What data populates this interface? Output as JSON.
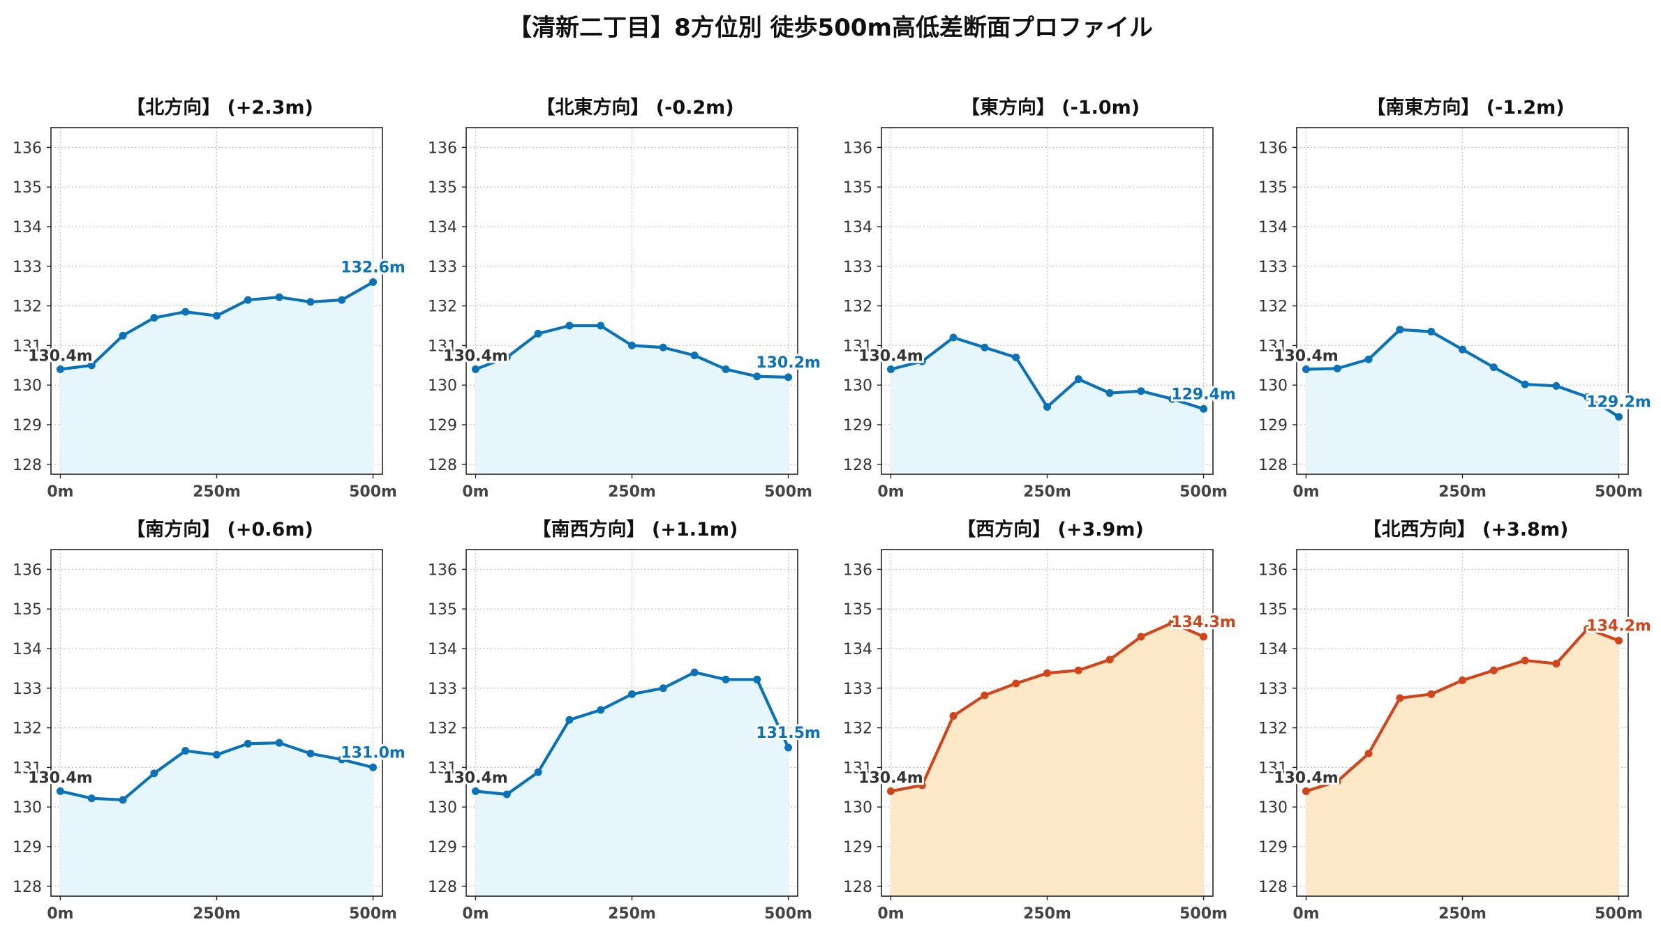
{
  "title": "【清新二丁目】8方位別 徒歩500m高低差断面プロファイル",
  "colors": {
    "blue": "#0a72b8",
    "blue_fill": "#e6f6fc",
    "orange": "#d2451a",
    "orange_fill": "#fde8c8",
    "start_label": "#333333"
  },
  "chart_data": [
    {
      "type": "line",
      "title": "【北方向】 (+2.3m)",
      "color": "blue",
      "x": [
        0,
        50,
        100,
        150,
        200,
        250,
        300,
        350,
        400,
        450,
        500
      ],
      "y": [
        130.4,
        130.5,
        131.25,
        131.7,
        131.85,
        131.75,
        132.15,
        132.22,
        132.1,
        132.15,
        132.6
      ],
      "start_label": "130.4m",
      "end_label": "132.6m",
      "xticks": [
        "0m",
        "250m",
        "500m"
      ],
      "xtick_values": [
        0,
        250,
        500
      ],
      "yticks": [
        "128",
        "129",
        "130",
        "131",
        "132",
        "133",
        "134",
        "135",
        "136"
      ],
      "xlim": [
        -15,
        515
      ],
      "ylim": [
        127.75,
        136.5
      ],
      "grid": true
    },
    {
      "type": "line",
      "title": "【北東方向】 (-0.2m)",
      "color": "blue",
      "x": [
        0,
        50,
        100,
        150,
        200,
        250,
        300,
        350,
        400,
        450,
        500
      ],
      "y": [
        130.4,
        130.7,
        131.3,
        131.5,
        131.5,
        131.0,
        130.95,
        130.75,
        130.4,
        130.22,
        130.2
      ],
      "start_label": "130.4m",
      "end_label": "130.2m",
      "xticks": [
        "0m",
        "250m",
        "500m"
      ],
      "xtick_values": [
        0,
        250,
        500
      ],
      "yticks": [
        "128",
        "129",
        "130",
        "131",
        "132",
        "133",
        "134",
        "135",
        "136"
      ],
      "xlim": [
        -15,
        515
      ],
      "ylim": [
        127.75,
        136.5
      ],
      "grid": true
    },
    {
      "type": "line",
      "title": "【東方向】 (-1.0m)",
      "color": "blue",
      "x": [
        0,
        50,
        100,
        150,
        200,
        250,
        300,
        350,
        400,
        450,
        500
      ],
      "y": [
        130.4,
        130.6,
        131.2,
        130.95,
        130.7,
        129.45,
        130.15,
        129.8,
        129.85,
        129.65,
        129.4
      ],
      "start_label": "130.4m",
      "end_label": "129.4m",
      "xticks": [
        "0m",
        "250m",
        "500m"
      ],
      "xtick_values": [
        0,
        250,
        500
      ],
      "yticks": [
        "128",
        "129",
        "130",
        "131",
        "132",
        "133",
        "134",
        "135",
        "136"
      ],
      "xlim": [
        -15,
        515
      ],
      "ylim": [
        127.75,
        136.5
      ],
      "grid": true
    },
    {
      "type": "line",
      "title": "【南東方向】 (-1.2m)",
      "color": "blue",
      "x": [
        0,
        50,
        100,
        150,
        200,
        250,
        300,
        350,
        400,
        450,
        500
      ],
      "y": [
        130.4,
        130.42,
        130.65,
        131.4,
        131.35,
        130.9,
        130.45,
        130.02,
        129.98,
        129.7,
        129.2
      ],
      "start_label": "130.4m",
      "end_label": "129.2m",
      "xticks": [
        "0m",
        "250m",
        "500m"
      ],
      "xtick_values": [
        0,
        250,
        500
      ],
      "yticks": [
        "128",
        "129",
        "130",
        "131",
        "132",
        "133",
        "134",
        "135",
        "136"
      ],
      "xlim": [
        -15,
        515
      ],
      "ylim": [
        127.75,
        136.5
      ],
      "grid": true
    },
    {
      "type": "line",
      "title": "【南方向】 (+0.6m)",
      "color": "blue",
      "x": [
        0,
        50,
        100,
        150,
        200,
        250,
        300,
        350,
        400,
        450,
        500
      ],
      "y": [
        130.4,
        130.22,
        130.18,
        130.85,
        131.42,
        131.32,
        131.6,
        131.62,
        131.35,
        131.2,
        131.0
      ],
      "start_label": "130.4m",
      "end_label": "131.0m",
      "xticks": [
        "0m",
        "250m",
        "500m"
      ],
      "xtick_values": [
        0,
        250,
        500
      ],
      "yticks": [
        "128",
        "129",
        "130",
        "131",
        "132",
        "133",
        "134",
        "135",
        "136"
      ],
      "xlim": [
        -15,
        515
      ],
      "ylim": [
        127.75,
        136.5
      ],
      "grid": true
    },
    {
      "type": "line",
      "title": "【南西方向】 (+1.1m)",
      "color": "blue",
      "x": [
        0,
        50,
        100,
        150,
        200,
        250,
        300,
        350,
        400,
        450,
        500
      ],
      "y": [
        130.4,
        130.32,
        130.88,
        132.2,
        132.45,
        132.85,
        133.0,
        133.4,
        133.22,
        133.22,
        131.5
      ],
      "start_label": "130.4m",
      "end_label": "131.5m",
      "xticks": [
        "0m",
        "250m",
        "500m"
      ],
      "xtick_values": [
        0,
        250,
        500
      ],
      "yticks": [
        "128",
        "129",
        "130",
        "131",
        "132",
        "133",
        "134",
        "135",
        "136"
      ],
      "xlim": [
        -15,
        515
      ],
      "ylim": [
        127.75,
        136.5
      ],
      "grid": true
    },
    {
      "type": "line",
      "title": "【西方向】 (+3.9m)",
      "color": "orange",
      "x": [
        0,
        50,
        100,
        150,
        200,
        250,
        300,
        350,
        400,
        450,
        500
      ],
      "y": [
        130.4,
        130.55,
        132.3,
        132.82,
        133.12,
        133.38,
        133.45,
        133.72,
        134.3,
        134.65,
        134.3
      ],
      "start_label": "130.4m",
      "end_label": "134.3m",
      "xticks": [
        "0m",
        "250m",
        "500m"
      ],
      "xtick_values": [
        0,
        250,
        500
      ],
      "yticks": [
        "128",
        "129",
        "130",
        "131",
        "132",
        "133",
        "134",
        "135",
        "136"
      ],
      "xlim": [
        -15,
        515
      ],
      "ylim": [
        127.75,
        136.5
      ],
      "grid": true
    },
    {
      "type": "line",
      "title": "【北西方向】 (+3.8m)",
      "color": "orange",
      "x": [
        0,
        50,
        100,
        150,
        200,
        250,
        300,
        350,
        400,
        450,
        500
      ],
      "y": [
        130.4,
        130.65,
        131.35,
        132.75,
        132.85,
        133.2,
        133.45,
        133.7,
        133.62,
        134.5,
        134.2
      ],
      "start_label": "130.4m",
      "end_label": "134.2m",
      "xticks": [
        "0m",
        "250m",
        "500m"
      ],
      "xtick_values": [
        0,
        250,
        500
      ],
      "yticks": [
        "128",
        "129",
        "130",
        "131",
        "132",
        "133",
        "134",
        "135",
        "136"
      ],
      "xlim": [
        -15,
        515
      ],
      "ylim": [
        127.75,
        136.5
      ],
      "grid": true
    }
  ]
}
